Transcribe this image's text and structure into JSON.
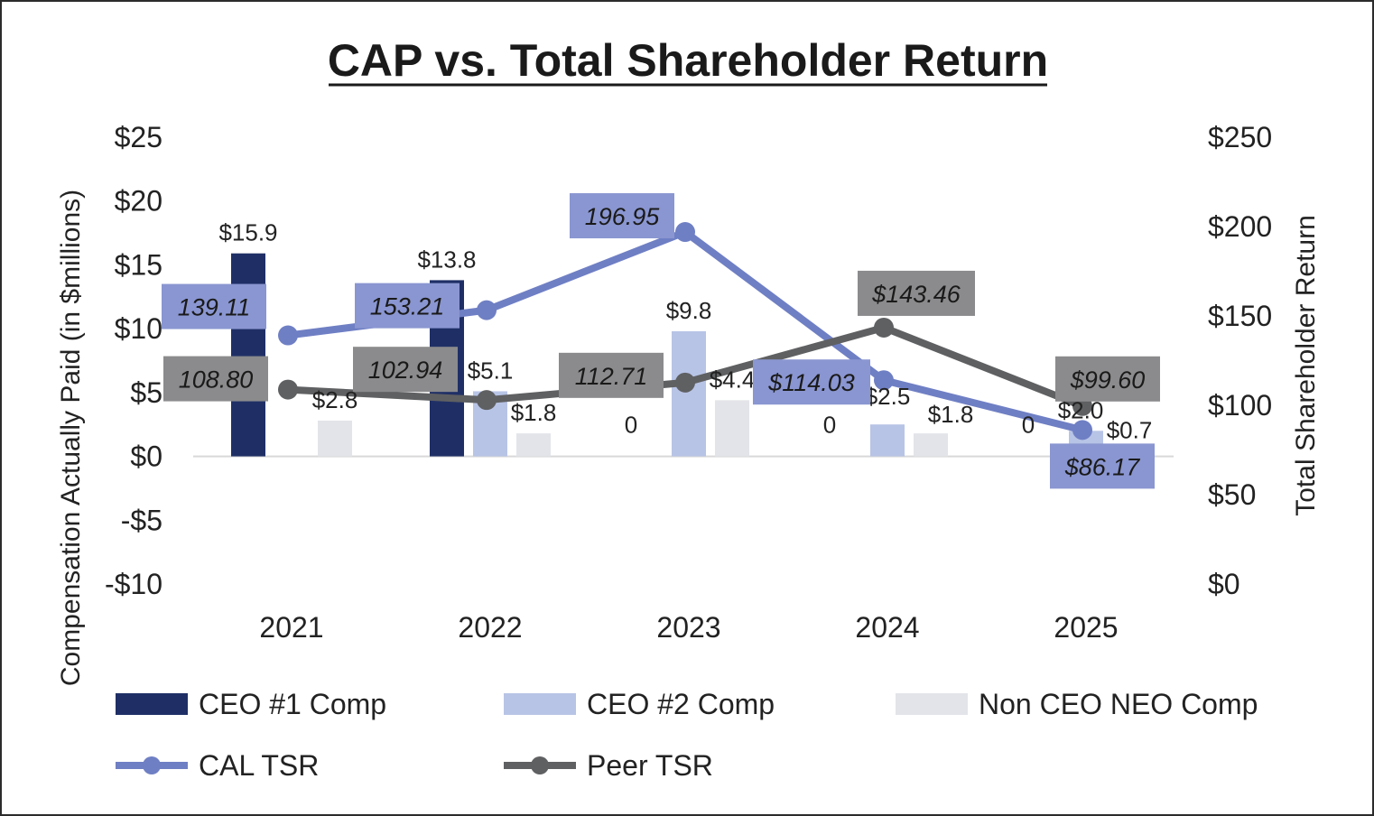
{
  "chart_data": {
    "type": "bar",
    "title": "CAP vs. Total Shareholder Return",
    "ylabel": "Compensation Actually Paid (in $millions)",
    "y2label": "Total Shareholder Return",
    "categories": [
      "2021",
      "2022",
      "2023",
      "2024",
      "2025"
    ],
    "ylim": [
      -10,
      25
    ],
    "y2lim": [
      0,
      250
    ],
    "y_ticks": [
      25,
      20,
      15,
      10,
      5,
      0,
      -5,
      -10
    ],
    "y_tick_labels": [
      "$25",
      "$20",
      "$15",
      "$10",
      "$5",
      "$0",
      "-$5",
      "-$10"
    ],
    "y2_ticks": [
      250,
      200,
      150,
      100,
      50,
      0
    ],
    "y2_tick_labels": [
      "$250",
      "$200",
      "$150",
      "$100",
      "$50",
      "$0"
    ],
    "legend_position": "bottom",
    "series": [
      {
        "name": "CEO #1 Comp",
        "kind": "bar",
        "color": "#1f2f66",
        "values": [
          15.9,
          13.8,
          null,
          null,
          null
        ],
        "labels": [
          "$15.9",
          "$13.8",
          "",
          "",
          ""
        ]
      },
      {
        "name": "CEO #2 Comp",
        "kind": "bar",
        "color": "#b8c4e6",
        "values": [
          null,
          5.1,
          9.8,
          2.5,
          2.0
        ],
        "labels": [
          "",
          "$5.1",
          "$9.8",
          "$2.5",
          "$2.0"
        ]
      },
      {
        "name": "Non CEO NEO Comp",
        "kind": "bar",
        "color": "#e3e4e9",
        "values": [
          2.8,
          1.8,
          4.4,
          1.8,
          0.7
        ],
        "labels": [
          "$2.8",
          "$1.8",
          "$4.4",
          "$1.8",
          "$0.7"
        ]
      },
      {
        "name": "CAL TSR",
        "kind": "line",
        "axis": "right",
        "color": "#6f7fc4",
        "label_bg": "#8a96d1",
        "values": [
          139.11,
          153.21,
          196.95,
          114.03,
          86.17
        ],
        "labels": [
          "139.11",
          "153.21",
          "196.95",
          "$114.03",
          "$86.17"
        ]
      },
      {
        "name": "Peer TSR",
        "kind": "line",
        "axis": "right",
        "color": "#5f6062",
        "label_bg": "#8b8b8d",
        "values": [
          108.8,
          102.94,
          112.71,
          143.46,
          99.6
        ],
        "labels": [
          "108.80",
          "102.94",
          "112.71",
          "$143.46",
          "$99.60"
        ]
      }
    ],
    "zero_labels": [
      "0",
      "0",
      "0"
    ]
  }
}
